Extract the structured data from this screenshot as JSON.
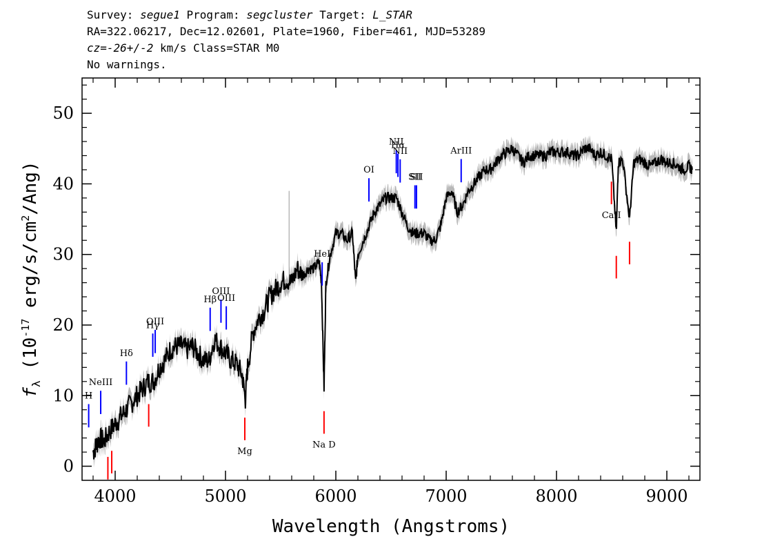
{
  "header": {
    "survey_label": "Survey:",
    "survey": "segue1",
    "program_label": "Program:",
    "program": "segcluster",
    "target_label": "Target:",
    "target": "L_STAR",
    "line2": "RA=322.06217, Dec=12.02601, Plate=1960, Fiber=461, MJD=53289",
    "cz_label": "cz=",
    "cz_value": "-26+/-2",
    "cz_rest": " km/s Class=STAR M0",
    "warnings": "No warnings."
  },
  "chart_data": {
    "type": "line",
    "xlabel": "Wavelength (Angstroms)",
    "ylabel": "f_λ (10^-17 erg/s/cm^2/Ang)",
    "xlim": [
      3700,
      9300
    ],
    "ylim": [
      -2,
      55
    ],
    "x_ticks": [
      "4000",
      "5000",
      "6000",
      "7000",
      "8000",
      "9000"
    ],
    "y_ticks": [
      "0",
      "10",
      "20",
      "30",
      "40",
      "50"
    ],
    "grid": false,
    "colors": {
      "spectrum": "#000000",
      "error": "#b8b8b8",
      "emission": "#0000ff",
      "absorption": "#ff0000"
    },
    "series": [
      {
        "x": [
          3800,
          3830,
          3860,
          3900,
          3950,
          4000,
          4050,
          4100,
          4150,
          4200,
          4250,
          4300,
          4350,
          4400,
          4450,
          4500,
          4550,
          4600,
          4650,
          4700,
          4750,
          4800,
          4850,
          4900,
          4950,
          5000,
          5050,
          5100,
          5150,
          5180,
          5200,
          5250,
          5300,
          5350,
          5400,
          5450,
          5500,
          5550,
          5600,
          5650,
          5700,
          5750,
          5800,
          5850,
          5870,
          5893,
          5910,
          5950,
          6000,
          6050,
          6100,
          6150,
          6180,
          6200,
          6250,
          6300,
          6350,
          6400,
          6450,
          6500,
          6550,
          6600,
          6650,
          6700,
          6750,
          6800,
          6850,
          6900,
          6950,
          7000,
          7050,
          7100,
          7150,
          7200,
          7250,
          7300,
          7350,
          7400,
          7450,
          7500,
          7550,
          7600,
          7650,
          7700,
          7750,
          7800,
          7850,
          7900,
          7950,
          8000,
          8050,
          8100,
          8150,
          8200,
          8250,
          8300,
          8350,
          8400,
          8450,
          8500,
          8542,
          8560,
          8600,
          8662,
          8700,
          8750,
          8800,
          8850,
          8900,
          8950,
          9000,
          9050,
          9100,
          9150,
          9200,
          9230
        ],
        "y": [
          2,
          3,
          4,
          3.5,
          5,
          6,
          7,
          8,
          9,
          10,
          11,
          12,
          12,
          14,
          15,
          16.5,
          17,
          17,
          16.5,
          17,
          16,
          15,
          15,
          18,
          17,
          16,
          15,
          14.5,
          13,
          9.5,
          14,
          19,
          21,
          22,
          24,
          25,
          26,
          26.5,
          26,
          28,
          27,
          28,
          28,
          29,
          26,
          11,
          26,
          30,
          33,
          33,
          32,
          33,
          26,
          30,
          32,
          34,
          36,
          37,
          38,
          38,
          38,
          36,
          34,
          33,
          33,
          33,
          32,
          32,
          34,
          38,
          39,
          36,
          37,
          39,
          40,
          41,
          42,
          42,
          43,
          44,
          44.5,
          45,
          44,
          43,
          44,
          44,
          44,
          44,
          44.5,
          44.5,
          44.5,
          44.5,
          44,
          44,
          45,
          45,
          44,
          44.5,
          44,
          43.5,
          33,
          43,
          43.5,
          35,
          43,
          43.5,
          43,
          42.5,
          43,
          43.5,
          43,
          43,
          42.5,
          42,
          42.5,
          42
        ]
      }
    ],
    "lines": [
      {
        "label": "H",
        "wave": 3760,
        "kind": "emission"
      },
      {
        "label": "NeIII",
        "wave": 3869,
        "kind": "emission"
      },
      {
        "label": "Hδ",
        "wave": 4102,
        "kind": "emission"
      },
      {
        "label": "Hγ",
        "wave": 4341,
        "kind": "emission"
      },
      {
        "label": "OIII",
        "wave": 4363,
        "kind": "emission"
      },
      {
        "label": "Hβ",
        "wave": 4861,
        "kind": "emission"
      },
      {
        "label": "OIII",
        "wave": 4959,
        "kind": "emission"
      },
      {
        "label": "OIII",
        "wave": 5007,
        "kind": "emission"
      },
      {
        "label": "HeI",
        "wave": 5876,
        "kind": "emission"
      },
      {
        "label": "OI",
        "wave": 6300,
        "kind": "emission"
      },
      {
        "label": "NII",
        "wave": 6548,
        "kind": "emission"
      },
      {
        "label": "Hα",
        "wave": 6563,
        "kind": "emission"
      },
      {
        "label": "NII",
        "wave": 6583,
        "kind": "emission"
      },
      {
        "label": "SII",
        "wave": 6717,
        "kind": "emission"
      },
      {
        "label": "SII",
        "wave": 6731,
        "kind": "emission"
      },
      {
        "label": "ArIII",
        "wave": 7136,
        "kind": "emission"
      },
      {
        "label": "",
        "wave": 3934,
        "kind": "absorption"
      },
      {
        "label": "",
        "wave": 3969,
        "kind": "absorption"
      },
      {
        "label": "",
        "wave": 4304,
        "kind": "absorption"
      },
      {
        "label": "Mg",
        "wave": 5175,
        "kind": "absorption"
      },
      {
        "label": "Na D",
        "wave": 5893,
        "kind": "absorption"
      },
      {
        "label": "CaII",
        "wave": 8498,
        "kind": "absorption"
      },
      {
        "label": "",
        "wave": 8542,
        "kind": "absorption"
      },
      {
        "label": "",
        "wave": 8662,
        "kind": "absorption"
      }
    ]
  }
}
